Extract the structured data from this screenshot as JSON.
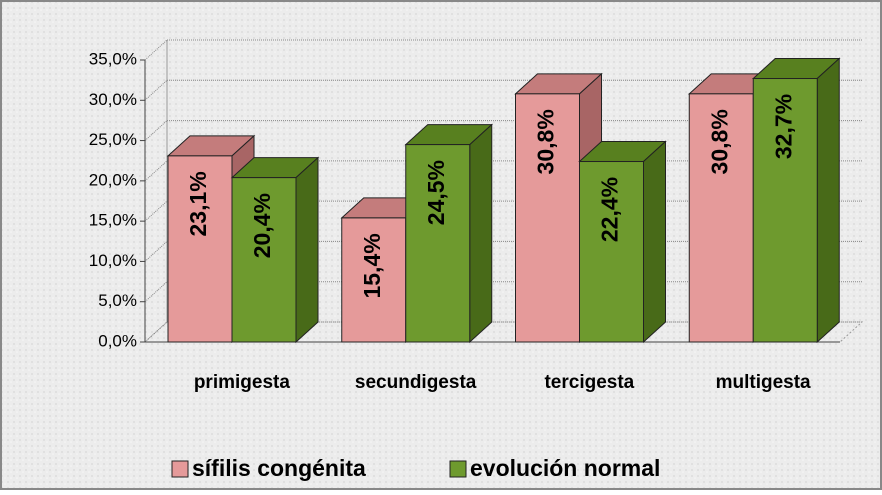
{
  "chart_data": {
    "type": "bar3d",
    "categories": [
      "primigesta",
      "secundigesta",
      "tercigesta",
      "multigesta"
    ],
    "series": [
      {
        "name": "sífilis congénita",
        "color": "#e59a9a",
        "values": [
          23.1,
          15.4,
          30.8,
          30.8
        ],
        "value_labels": [
          "23,1%",
          "15,4%",
          "30,8%",
          "30,8%"
        ]
      },
      {
        "name": "evolución normal",
        "color": "#6e9a2e",
        "values": [
          20.4,
          24.5,
          22.4,
          32.7
        ],
        "value_labels": [
          "20,4%",
          "24,5%",
          "22,4%",
          "32,7%"
        ]
      }
    ],
    "ylim": [
      0,
      35
    ],
    "yticks": [
      {
        "value": 0,
        "label": "0,0%"
      },
      {
        "value": 5,
        "label": "5,0%"
      },
      {
        "value": 10,
        "label": "10,0%"
      },
      {
        "value": 15,
        "label": "15,0%"
      },
      {
        "value": 20,
        "label": "20,0%"
      },
      {
        "value": 25,
        "label": "25,0%"
      },
      {
        "value": 30,
        "label": "30,0%"
      },
      {
        "value": 35,
        "label": "35,0%"
      }
    ],
    "grid": true,
    "legend": "bottom"
  }
}
